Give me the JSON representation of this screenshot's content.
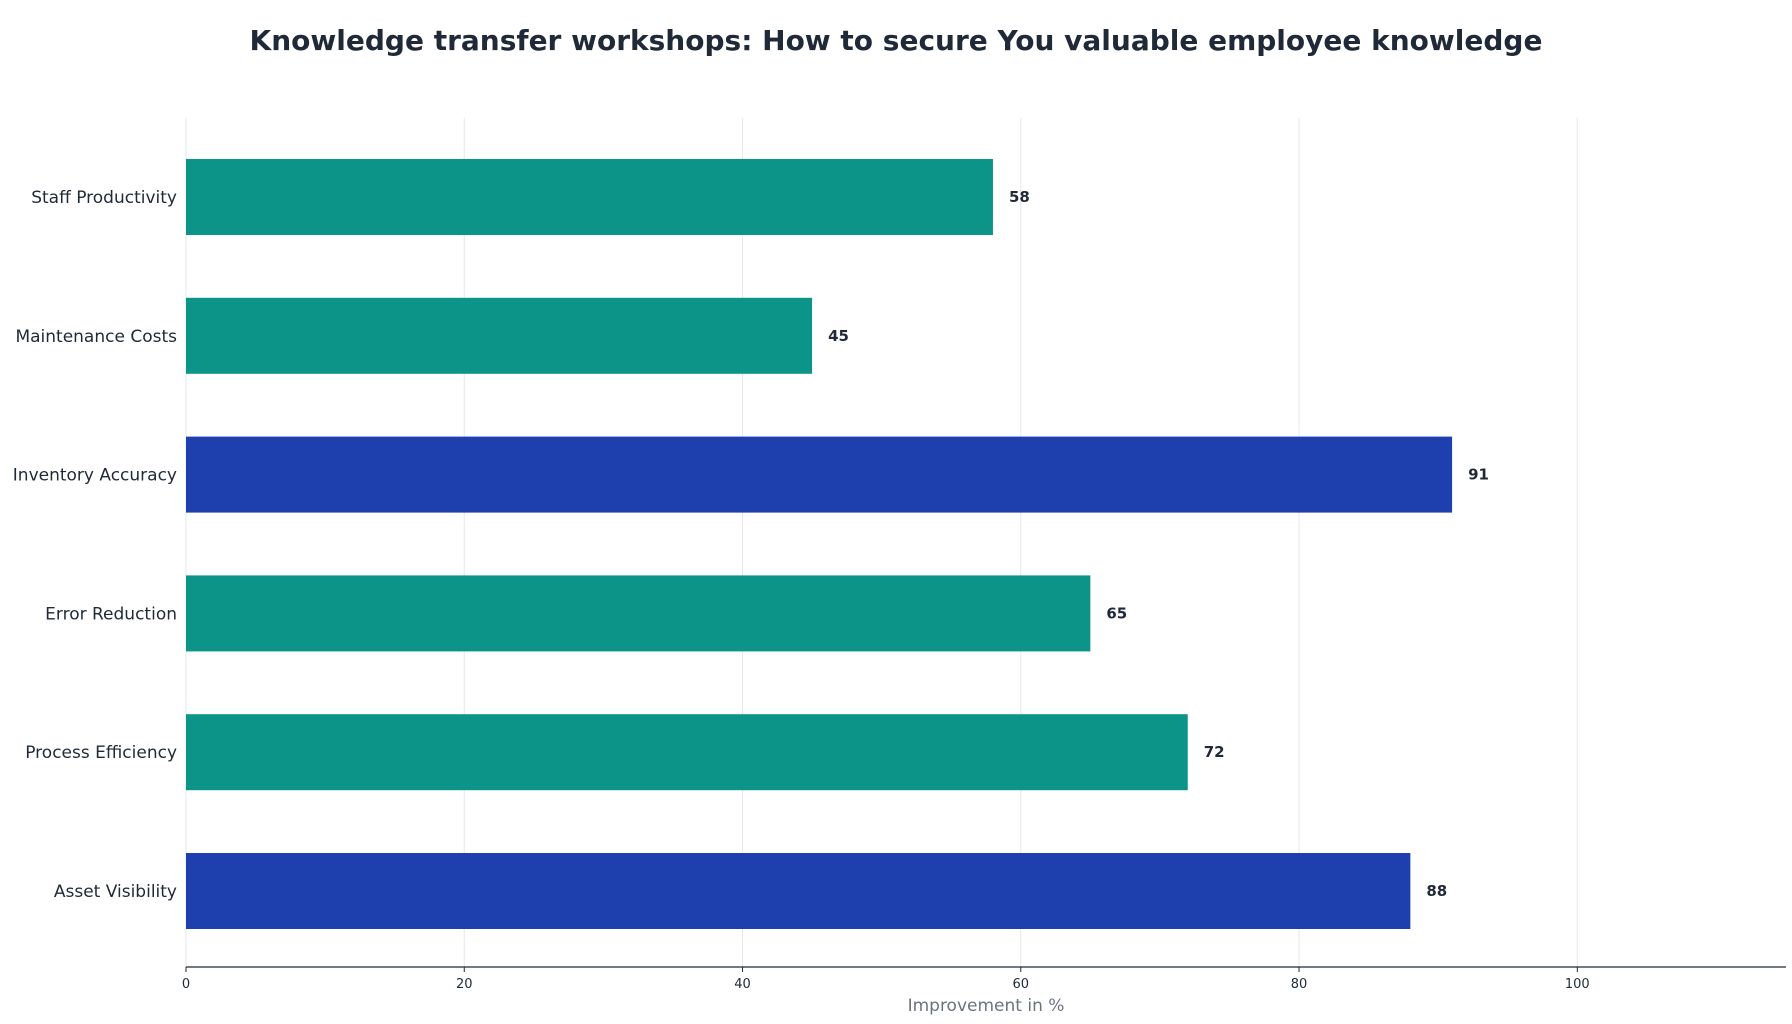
{
  "chart_data": {
    "type": "bar",
    "orientation": "horizontal",
    "title": "Knowledge transfer workshops: How to secure You valuable employee knowledge",
    "xlabel": "Improvement in %",
    "ylabel": "",
    "categories": [
      "Staff Productivity",
      "Maintenance Costs",
      "Inventory Accuracy",
      "Error Reduction",
      "Process Efficiency",
      "Asset Visibility"
    ],
    "values": [
      58,
      45,
      91,
      65,
      72,
      88
    ],
    "bar_colors": [
      "#0d9488",
      "#0d9488",
      "#1e40af",
      "#0d9488",
      "#0d9488",
      "#1e40af"
    ],
    "xlim": [
      0,
      115
    ],
    "xticks": [
      0,
      20,
      40,
      60,
      80,
      100
    ],
    "grid": "vertical",
    "legend": "none"
  },
  "colors": {
    "primary": "#0d9488",
    "highlight": "#1e40af",
    "text": "#1f2937",
    "muted": "#6b7280",
    "grid": "#e5e7eb",
    "axis": "#1f2937"
  }
}
